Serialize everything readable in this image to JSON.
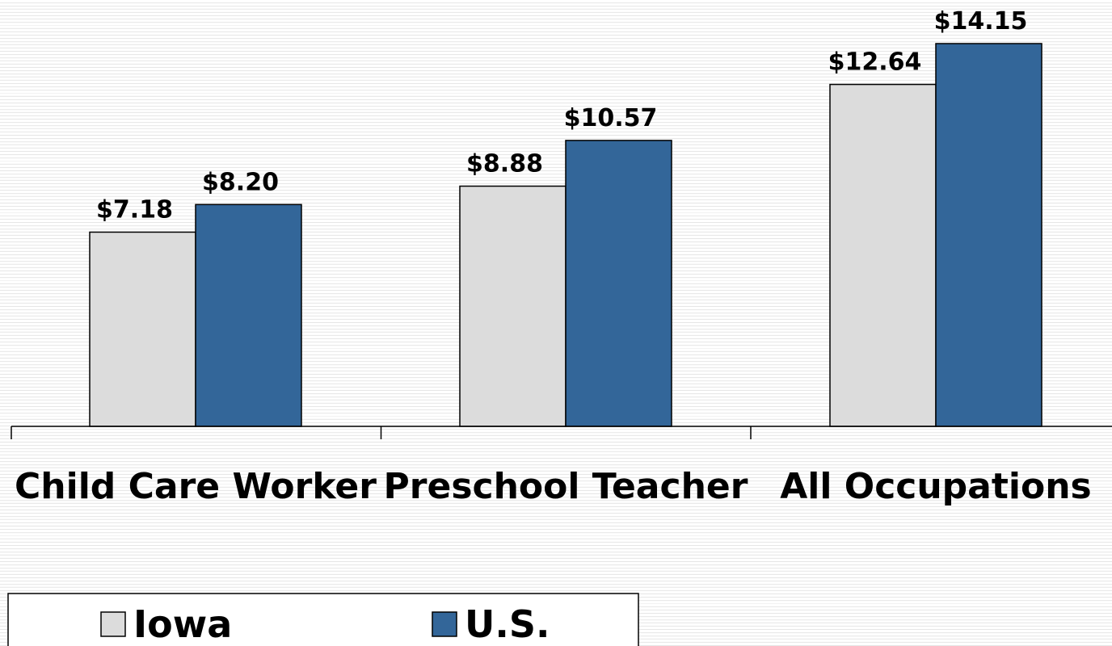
{
  "chart_data": {
    "type": "bar",
    "categories": [
      "Child Care Worker",
      "Preschool Teacher",
      "All Occupations"
    ],
    "series": [
      {
        "name": "Iowa",
        "color": "#dcdcdc",
        "values": [
          7.18,
          8.88,
          12.64
        ],
        "value_labels": [
          "$7.18",
          "$8.88",
          "$12.64"
        ]
      },
      {
        "name": "U.S.",
        "color": "#336699",
        "values": [
          8.2,
          10.57,
          14.15
        ],
        "value_labels": [
          "$8.20",
          "$10.57",
          "$14.15"
        ]
      }
    ],
    "ylim": [
      0,
      16
    ],
    "legend": "bottom-left"
  }
}
